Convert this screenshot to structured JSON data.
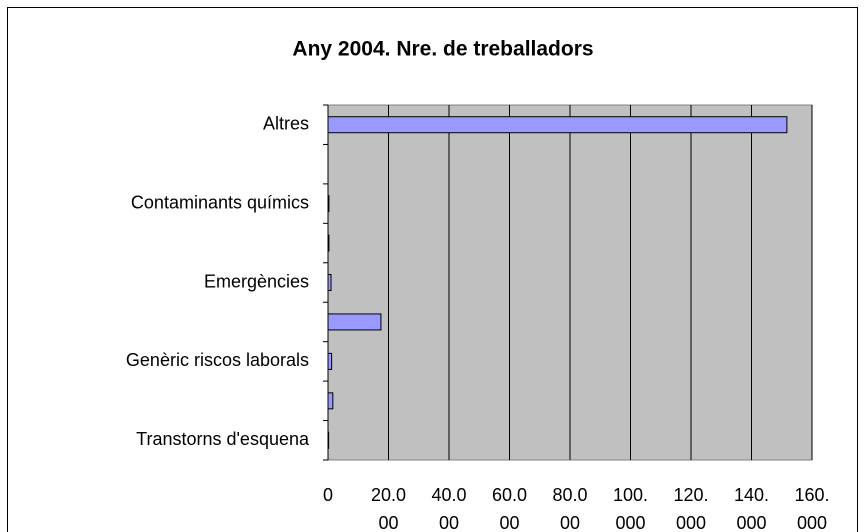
{
  "chart_data": {
    "type": "barh",
    "title": "Any 2004.  Nre. de treballadors",
    "categories": [
      "Altres",
      null,
      "Contaminants químics",
      null,
      "Emergències",
      null,
      "Genèric riscos laborals",
      null,
      "Transtorns d'esquena"
    ],
    "values": [
      151700,
      0,
      300,
      300,
      1000,
      17500,
      1200,
      1600,
      200
    ],
    "color": "#9999ff",
    "xlim": [
      0,
      160000
    ],
    "xticks": [
      0,
      {
        "value": 20000,
        "label": "20.000"
      },
      {
        "value": 40000,
        "label": "40.000"
      },
      {
        "value": 60000,
        "label": "60.000"
      },
      {
        "value": 80000,
        "label": "80.000"
      },
      {
        "value": 100000,
        "label": "100.000"
      },
      {
        "value": 120000,
        "label": "120.000"
      },
      {
        "value": 140000,
        "label": "140.000"
      },
      {
        "value": 160000,
        "label": "160.000"
      }
    ],
    "grid": true
  }
}
